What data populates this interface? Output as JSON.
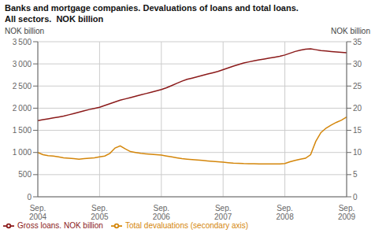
{
  "chart_data": {
    "type": "line",
    "title": "Banks and mortgage companies. Devaluations of loans and total loans.",
    "subtitle": "All sectors.  NOK billion",
    "ylabel": "NOK billion",
    "y2label": "NOK billion",
    "categories": [
      "Sep.\n2004",
      null,
      null,
      null,
      null,
      null,
      null,
      null,
      null,
      null,
      null,
      null,
      "Sep.\n2005",
      null,
      null,
      null,
      null,
      null,
      null,
      null,
      null,
      null,
      null,
      null,
      "Sep.\n2006",
      null,
      null,
      null,
      null,
      null,
      null,
      null,
      null,
      null,
      null,
      null,
      "Sep.\n2007",
      null,
      null,
      null,
      null,
      null,
      null,
      null,
      null,
      null,
      null,
      null,
      "Sep.\n2008",
      null,
      null,
      null,
      null,
      null,
      null,
      null,
      null,
      null,
      null,
      null,
      "Sep.\n2009"
    ],
    "series": [
      {
        "name": "Gross loans. NOK billion",
        "color": "#8B1A1A",
        "values": [
          1720,
          1740,
          1760,
          1780,
          1800,
          1820,
          1850,
          1880,
          1910,
          1940,
          1970,
          1995,
          2020,
          2060,
          2100,
          2140,
          2180,
          2210,
          2240,
          2270,
          2300,
          2330,
          2360,
          2390,
          2420,
          2460,
          2510,
          2560,
          2610,
          2650,
          2680,
          2710,
          2740,
          2770,
          2800,
          2830,
          2870,
          2910,
          2950,
          2985,
          3020,
          3045,
          3070,
          3090,
          3110,
          3130,
          3150,
          3170,
          3200,
          3240,
          3280,
          3310,
          3330,
          3340,
          3320,
          3300,
          3290,
          3280,
          3270,
          3260,
          3250
        ]
      },
      {
        "name": "Total devaluations (secondary axis)",
        "color": "#D4860A",
        "axis": "y2",
        "values": [
          10.0,
          9.5,
          9.3,
          9.2,
          9.0,
          8.8,
          8.7,
          8.6,
          8.5,
          8.6,
          8.7,
          8.8,
          9.0,
          9.2,
          9.8,
          11.0,
          11.5,
          10.8,
          10.2,
          10.0,
          9.8,
          9.7,
          9.6,
          9.5,
          9.4,
          9.2,
          9.0,
          8.8,
          8.6,
          8.5,
          8.4,
          8.3,
          8.2,
          8.1,
          8.0,
          7.9,
          7.8,
          7.7,
          7.6,
          7.55,
          7.5,
          7.48,
          7.45,
          7.43,
          7.42,
          7.41,
          7.4,
          7.42,
          7.5,
          7.9,
          8.2,
          8.5,
          8.7,
          9.5,
          12.5,
          14.5,
          15.5,
          16.2,
          16.8,
          17.3,
          18.0
        ]
      }
    ],
    "ylim": [
      0,
      3500
    ],
    "yticks": [
      0,
      500,
      {
        "value": 1000,
        "label": "1 000"
      },
      {
        "value": 1500,
        "label": "1 500"
      },
      {
        "value": 2000,
        "label": "2 000"
      },
      {
        "value": 2500,
        "label": "2 500"
      },
      {
        "value": 3000,
        "label": "3 000"
      },
      {
        "value": 3500,
        "label": "3 500"
      }
    ],
    "y2lim": [
      0,
      35
    ],
    "y2ticks": [
      0,
      5,
      10,
      15,
      20,
      25,
      30,
      35
    ],
    "grid": true,
    "legend": "lower left"
  }
}
